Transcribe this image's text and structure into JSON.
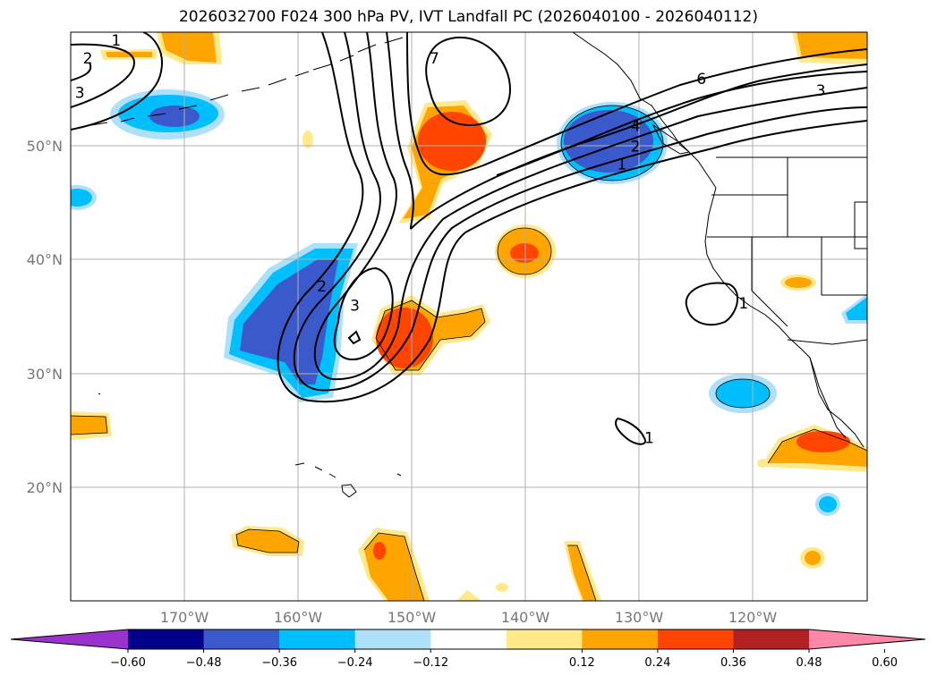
{
  "title": "2026032700 F024 300 hPa PV, IVT Landfall PC (2026040100 - 2026040112)",
  "axes": {
    "lat_labels": [
      "50°N",
      "40°N",
      "30°N",
      "20°N"
    ],
    "lon_labels": [
      "170°W",
      "160°W",
      "150°W",
      "140°W",
      "130°W",
      "120°W"
    ],
    "lat_values": [
      50,
      40,
      30,
      20
    ],
    "lon_values": [
      -170,
      -160,
      -150,
      -140,
      -130,
      -120
    ],
    "lon_range": [
      -180,
      -110
    ],
    "lat_range": [
      10,
      60
    ],
    "grid": true
  },
  "colorbar": {
    "colors": [
      "#9933cc",
      "#00008b",
      "#3a5acc",
      "#00bfff",
      "#aee0fa",
      "#ffffff",
      "#ffe98a",
      "#ffa500",
      "#ff4500",
      "#b22222",
      "#ff88aa"
    ],
    "tick_labels": [
      "−0.60",
      "−0.48",
      "−0.36",
      "−0.24",
      "−0.12",
      "0.12",
      "0.24",
      "0.36",
      "0.48",
      "0.60"
    ],
    "extend": "both"
  },
  "contour_labels": [
    {
      "text": "2",
      "lon": -178.5,
      "lat": 57.6
    },
    {
      "text": "3",
      "lon": -179.2,
      "lat": 54.6
    },
    {
      "text": "1",
      "lon": -176.0,
      "lat": 59.2
    },
    {
      "text": "7",
      "lon": -148.0,
      "lat": 57.6
    },
    {
      "text": "6",
      "lon": -124.5,
      "lat": 55.8
    },
    {
      "text": "3",
      "lon": -114.0,
      "lat": 54.8
    },
    {
      "text": "4",
      "lon": -130.3,
      "lat": 51.7
    },
    {
      "text": "2",
      "lon": -130.3,
      "lat": 49.9
    },
    {
      "text": "1",
      "lon": -131.5,
      "lat": 48.3
    },
    {
      "text": "2",
      "lon": -157.9,
      "lat": 37.6
    },
    {
      "text": "3",
      "lon": -155.0,
      "lat": 35.9
    },
    {
      "text": "1",
      "lon": -120.8,
      "lat": 36.1
    },
    {
      "text": "1",
      "lon": -129.1,
      "lat": 24.3
    }
  ]
}
